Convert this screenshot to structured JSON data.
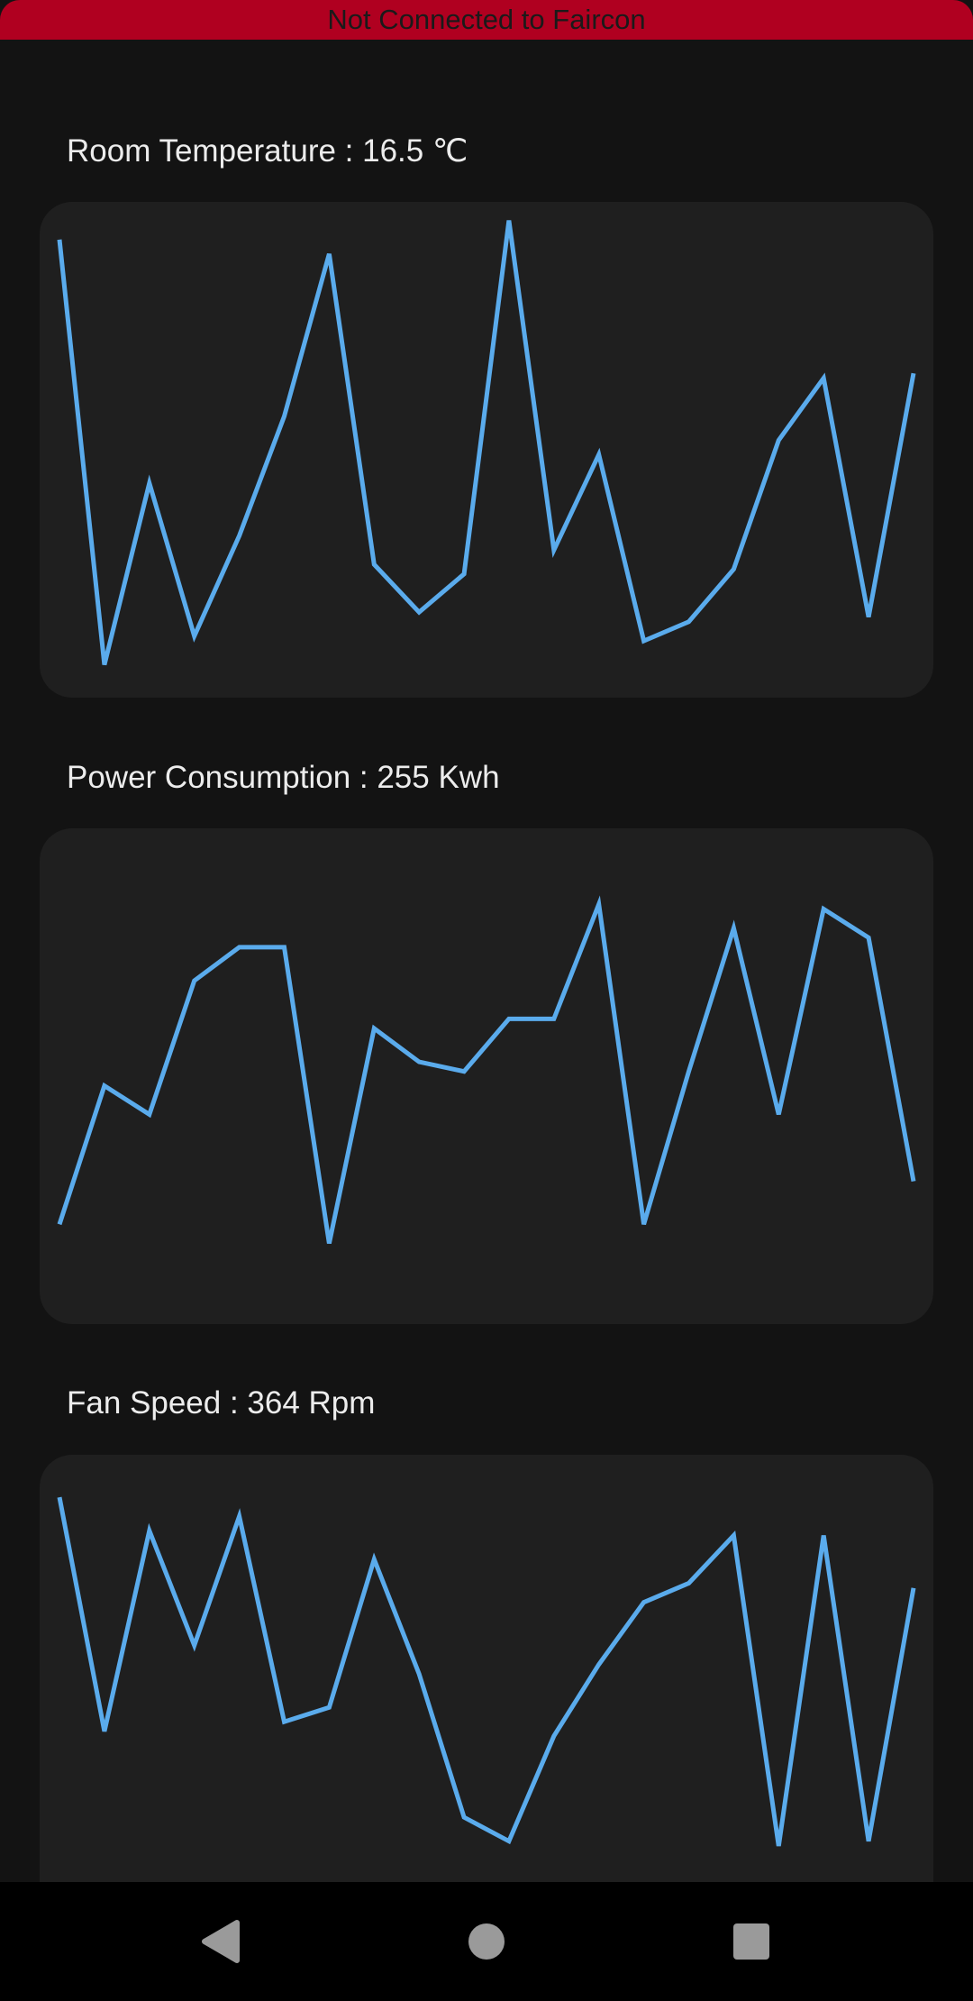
{
  "status": {
    "text": "Not Connected to Faircon",
    "color": "#b00020"
  },
  "line_color": "#5aabec",
  "charts": [
    {
      "title": "Room Temperature : 16.5 ℃",
      "chart_data": {
        "type": "line",
        "values": [
          0.94,
          0.05,
          0.43,
          0.11,
          0.32,
          0.57,
          0.91,
          0.26,
          0.16,
          0.24,
          0.98,
          0.29,
          0.49,
          0.1,
          0.14,
          0.25,
          0.52,
          0.65,
          0.15,
          0.66
        ],
        "ylim": [
          0,
          1
        ]
      }
    },
    {
      "title": "Power Consumption : 255 Kwh",
      "chart_data": {
        "type": "line",
        "values": [
          0.19,
          0.48,
          0.42,
          0.7,
          0.77,
          0.77,
          0.15,
          0.6,
          0.53,
          0.51,
          0.62,
          0.62,
          0.86,
          0.19,
          0.51,
          0.81,
          0.42,
          0.85,
          0.79,
          0.28
        ],
        "ylim": [
          0,
          1
        ]
      }
    },
    {
      "title": "Fan Speed : 364 Rpm",
      "chart_data": {
        "type": "line",
        "values": [
          0.93,
          0.44,
          0.86,
          0.62,
          0.89,
          0.46,
          0.49,
          0.8,
          0.56,
          0.26,
          0.21,
          0.43,
          0.58,
          0.71,
          0.75,
          0.85,
          0.2,
          0.85,
          0.21,
          0.74
        ],
        "ylim": [
          0,
          1
        ]
      }
    }
  ],
  "nav": {
    "back_icon": "back-triangle-icon",
    "home_icon": "home-circle-icon",
    "recents_icon": "recents-square-icon"
  }
}
